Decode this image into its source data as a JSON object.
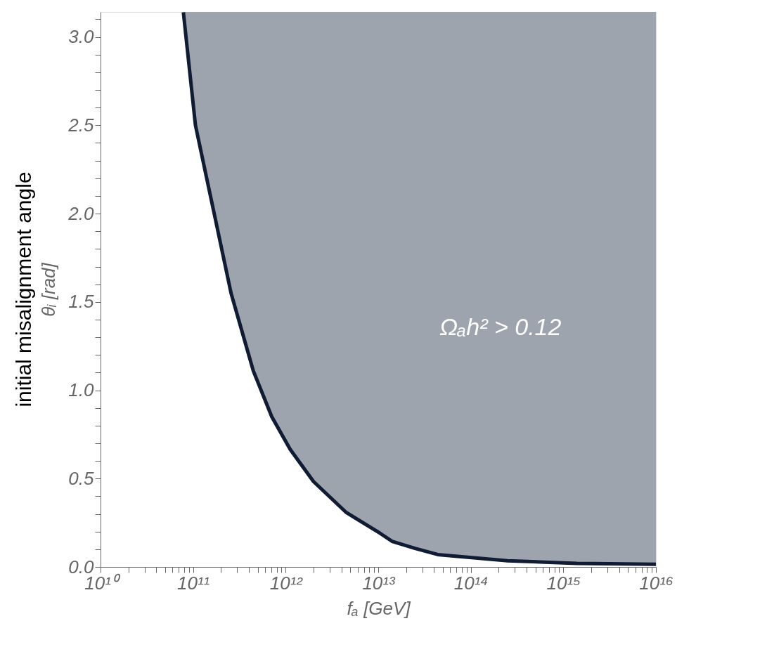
{
  "chart_data": {
    "type": "line",
    "xlabel": "fₐ [GeV]",
    "ylabel": "θᵢ [rad]",
    "annotations": [
      "Ωₐh² > 0.12",
      "initial misalignment angle"
    ],
    "log": "x",
    "grid": false,
    "xlim": [
      10000000000.0,
      1e+16
    ],
    "ylim": [
      0,
      3.14159
    ],
    "xticks": [
      {
        "value": 10000000000.0,
        "label": "10¹⁰"
      },
      {
        "value": 20000000000.0,
        "label": null
      },
      {
        "value": 30000000000.0,
        "label": null
      },
      {
        "value": 40000000000.0,
        "label": null
      },
      {
        "value": 50000000000.0,
        "label": null
      },
      {
        "value": 60000000000.0,
        "label": null
      },
      {
        "value": 70000000000.0,
        "label": null
      },
      {
        "value": 80000000000.0,
        "label": null
      },
      {
        "value": 90000000000.0,
        "label": null
      },
      {
        "value": 100000000000.0,
        "label": "10¹¹"
      },
      {
        "value": 200000000000.0,
        "label": null
      },
      {
        "value": 300000000000.0,
        "label": null
      },
      {
        "value": 400000000000.0,
        "label": null
      },
      {
        "value": 500000000000.0,
        "label": null
      },
      {
        "value": 600000000000.0,
        "label": null
      },
      {
        "value": 700000000000.0,
        "label": null
      },
      {
        "value": 800000000000.0,
        "label": null
      },
      {
        "value": 900000000000.0,
        "label": null
      },
      {
        "value": 1000000000000.0,
        "label": "10¹²"
      },
      {
        "value": 2000000000000.0,
        "label": null
      },
      {
        "value": 3000000000000.0,
        "label": null
      },
      {
        "value": 4000000000000.0,
        "label": null
      },
      {
        "value": 5000000000000.0,
        "label": null
      },
      {
        "value": 6000000000000.0,
        "label": null
      },
      {
        "value": 7000000000000.0,
        "label": null
      },
      {
        "value": 8000000000000.0,
        "label": null
      },
      {
        "value": 9000000000000.0,
        "label": null
      },
      {
        "value": 10000000000000.0,
        "label": "10¹³"
      },
      {
        "value": 20000000000000.0,
        "label": null
      },
      {
        "value": 30000000000000.0,
        "label": null
      },
      {
        "value": 40000000000000.0,
        "label": null
      },
      {
        "value": 50000000000000.0,
        "label": null
      },
      {
        "value": 60000000000000.0,
        "label": null
      },
      {
        "value": 70000000000000.0,
        "label": null
      },
      {
        "value": 80000000000000.0,
        "label": null
      },
      {
        "value": 90000000000000.0,
        "label": null
      },
      {
        "value": 100000000000000.0,
        "label": "10¹⁴"
      },
      {
        "value": 200000000000000.0,
        "label": null
      },
      {
        "value": 300000000000000.0,
        "label": null
      },
      {
        "value": 400000000000000.0,
        "label": null
      },
      {
        "value": 500000000000000.0,
        "label": null
      },
      {
        "value": 600000000000000.0,
        "label": null
      },
      {
        "value": 700000000000000.0,
        "label": null
      },
      {
        "value": 800000000000000.0,
        "label": null
      },
      {
        "value": 900000000000000.0,
        "label": null
      },
      {
        "value": 1000000000000000.0,
        "label": "10¹⁵"
      },
      {
        "value": 2000000000000000.0,
        "label": null
      },
      {
        "value": 3000000000000000.0,
        "label": null
      },
      {
        "value": 4000000000000000.0,
        "label": null
      },
      {
        "value": 5000000000000000.0,
        "label": null
      },
      {
        "value": 6000000000000000.0,
        "label": null
      },
      {
        "value": 7000000000000000.0,
        "label": null
      },
      {
        "value": 8000000000000000.0,
        "label": null
      },
      {
        "value": 9000000000000000.0,
        "label": null
      },
      {
        "value": 1e+16,
        "label": "10¹⁶"
      }
    ],
    "yticks": [
      {
        "value": 0,
        "label": "0.0"
      },
      {
        "value": 0.1,
        "label": null
      },
      {
        "value": 0.2,
        "label": null
      },
      {
        "value": 0.3,
        "label": null
      },
      {
        "value": 0.4,
        "label": null
      },
      0.5,
      {
        "value": 0.6,
        "label": null
      },
      {
        "value": 0.7,
        "label": null
      },
      {
        "value": 0.8,
        "label": null
      },
      {
        "value": 0.9,
        "label": null
      },
      {
        "value": 1,
        "label": "1.0"
      },
      {
        "value": 1.1,
        "label": null
      },
      {
        "value": 1.2,
        "label": null
      },
      {
        "value": 1.3,
        "label": null
      },
      {
        "value": 1.4,
        "label": null
      },
      1.5,
      {
        "value": 1.6,
        "label": null
      },
      {
        "value": 1.7,
        "label": null
      },
      {
        "value": 1.8,
        "label": null
      },
      {
        "value": 1.9,
        "label": null
      },
      {
        "value": 2,
        "label": "2.0"
      },
      {
        "value": 2.1,
        "label": null
      },
      {
        "value": 2.2,
        "label": null
      },
      {
        "value": 2.3,
        "label": null
      },
      {
        "value": 2.4,
        "label": null
      },
      2.5,
      {
        "value": 2.6,
        "label": null
      },
      {
        "value": 2.7,
        "label": null
      },
      {
        "value": 2.8,
        "label": null
      },
      {
        "value": 2.9,
        "label": null
      },
      {
        "value": 3,
        "label": "3.0"
      },
      {
        "value": 3.1,
        "label": null
      }
    ],
    "series": [
      {
        "type": "line",
        "color": "#0f1c33",
        "x": [
          78500000000.0,
          106000000000.0,
          169000000000.0,
          257000000000.0,
          447000000000.0,
          708000000000.0,
          1120000000000.0,
          2000000000000.0,
          4470000000000.0,
          10500000000000.0,
          14100000000000.0,
          25000000000000.0,
          44000000000000.0,
          250000000000000.0,
          1400000000000000.0,
          1e+16
        ],
        "values": [
          3.14,
          2.5,
          2.0,
          1.55,
          1.11,
          0.85,
          0.665,
          0.483,
          0.31,
          0.19,
          0.145,
          0.105,
          0.07,
          0.035,
          0.02,
          0.015
        ],
        "lower": [
          3.14,
          2.5,
          2.0,
          1.55,
          1.11,
          0.85,
          0.665,
          0.483,
          0.31,
          0.19,
          0.145,
          0.105,
          0.07,
          0.035,
          0.02,
          0.015
        ],
        "upper": [
          3.14159,
          3.14159,
          3.14159,
          3.14159,
          3.14159,
          3.14159,
          3.14159,
          3.14159,
          3.14159,
          3.14159,
          3.14159,
          3.14159,
          3.14159,
          3.14159,
          3.14159,
          3.14159
        ]
      }
    ]
  }
}
